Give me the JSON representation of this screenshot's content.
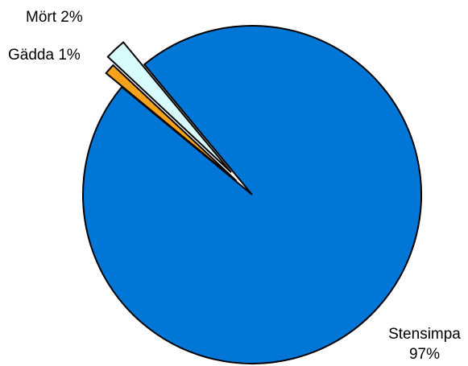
{
  "chart_data": {
    "type": "pie",
    "title": "",
    "slices": [
      {
        "label": "Stensimpa",
        "value": 97,
        "pct_label": "97%",
        "color": "#0077D7"
      },
      {
        "label": "Gädda",
        "value": 1,
        "pct_label": "1%",
        "color": "#F7A21B"
      },
      {
        "label": "Mört",
        "value": 2,
        "pct_label": "2%",
        "color": "#D8FBFB"
      }
    ]
  },
  "labels": {
    "stensimpa_name": "Stensimpa",
    "stensimpa_pct": "97%",
    "gadda": "Gädda 1%",
    "mort": "Mört 2%"
  }
}
